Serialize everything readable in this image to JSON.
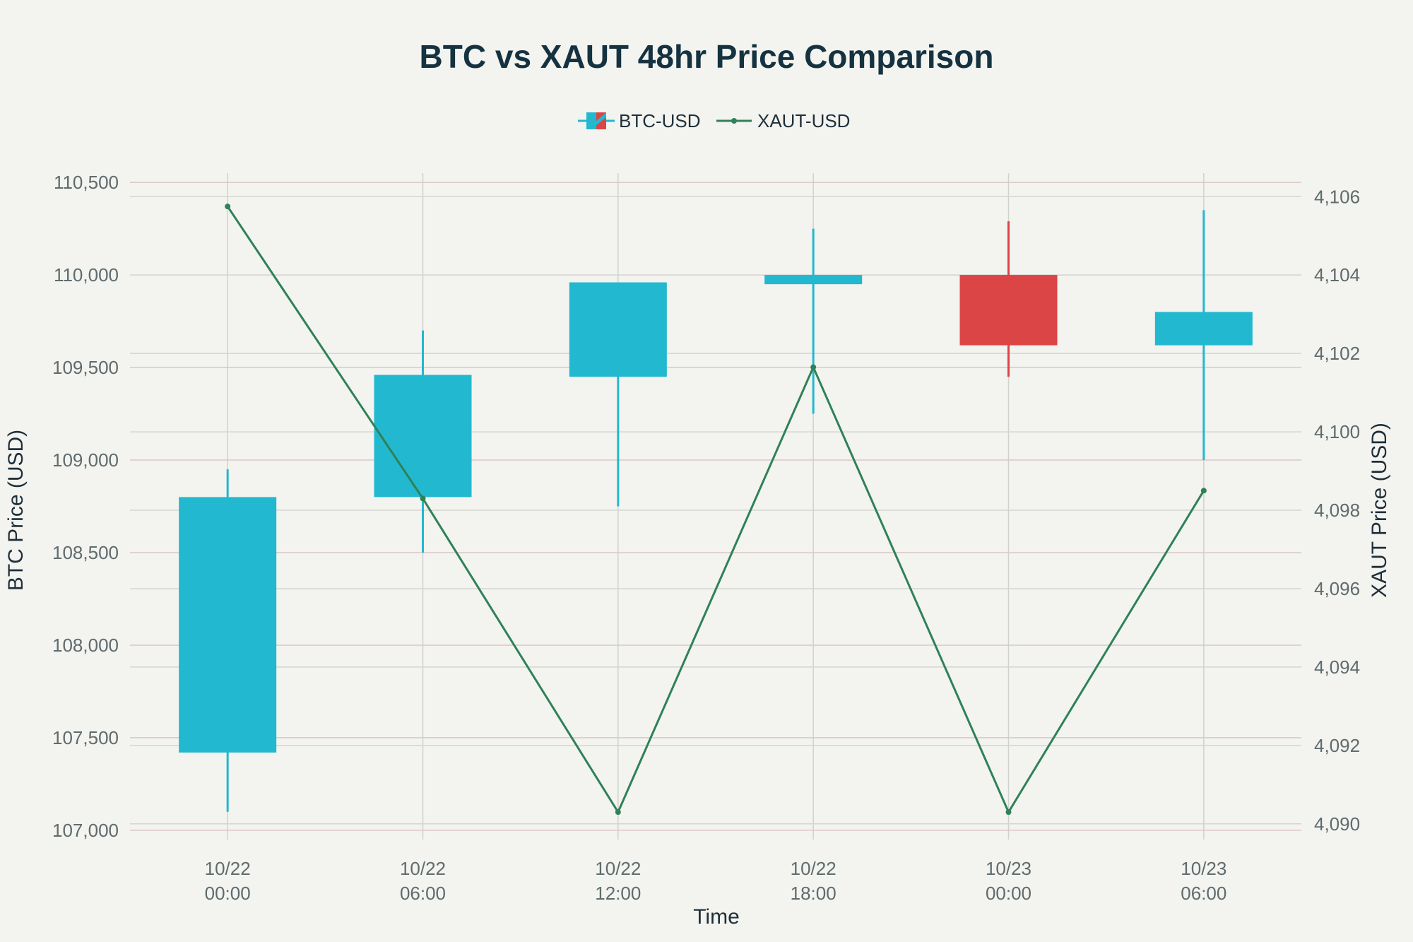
{
  "chart_data": {
    "type": "candlestick+line",
    "title": "BTC vs XAUT 48hr Price Comparison",
    "xlabel": "Time",
    "ylabel_left": "BTC Price (USD)",
    "ylabel_right": "XAUT Price (USD)",
    "categories": [
      [
        "10/22",
        "00:00"
      ],
      [
        "10/22",
        "06:00"
      ],
      [
        "10/22",
        "12:00"
      ],
      [
        "10/22",
        "18:00"
      ],
      [
        "10/23",
        "00:00"
      ],
      [
        "10/23",
        "06:00"
      ]
    ],
    "ylim_left": [
      106950,
      110550
    ],
    "ylim_right": [
      4089.6,
      4106.6
    ],
    "yticks_left": [
      107000,
      107500,
      108000,
      108500,
      109000,
      109500,
      110000,
      110500
    ],
    "yticks_left_labels": [
      "107,000",
      "107,500",
      "108,000",
      "108,500",
      "109,000",
      "109,500",
      "110,000",
      "110,500"
    ],
    "yticks_right": [
      4090,
      4092,
      4094,
      4096,
      4098,
      4100,
      4102,
      4104,
      4106
    ],
    "yticks_right_labels": [
      "4,090",
      "4,092",
      "4,094",
      "4,096",
      "4,098",
      "4,100",
      "4,102",
      "4,104",
      "4,106"
    ],
    "grid": true,
    "legend_position": "top-center",
    "series": [
      {
        "name": "BTC-USD",
        "kind": "candlestick",
        "axis": "left",
        "increasing_color": "#22b8cf",
        "decreasing_color": "#db4545",
        "open": [
          107420,
          108800,
          109450,
          109950,
          110000,
          109620
        ],
        "high": [
          108950,
          109700,
          109950,
          110250,
          110290,
          110350
        ],
        "low": [
          107100,
          108500,
          108750,
          109250,
          109450,
          109000
        ],
        "close": [
          108800,
          109460,
          109960,
          110000,
          109620,
          109800
        ]
      },
      {
        "name": "XAUT-USD",
        "kind": "line",
        "axis": "right",
        "color": "#2f8158",
        "values": [
          4105.75,
          4098.3,
          4090.3,
          4101.65,
          4090.3,
          4098.5
        ]
      }
    ]
  }
}
